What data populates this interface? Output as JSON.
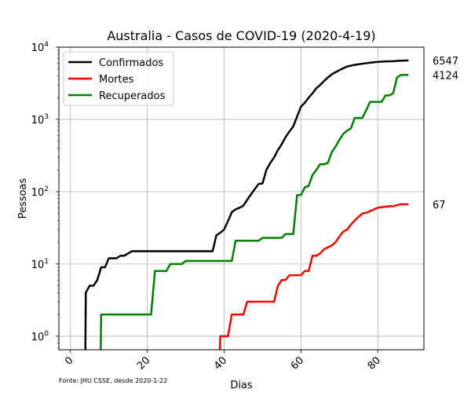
{
  "chart_data": {
    "type": "line",
    "title": "Australia - Casos de COVID-19 (2020-4-19)",
    "xlabel": "Dias",
    "ylabel": "Pessoas",
    "yscale": "log",
    "xlim": [
      -3,
      92
    ],
    "ylim": [
      0.65,
      10000
    ],
    "xticks": [
      0,
      20,
      40,
      60,
      80
    ],
    "yticks": [
      {
        "value": 1,
        "label": "10",
        "exp": "0"
      },
      {
        "value": 10,
        "label": "10",
        "exp": "1"
      },
      {
        "value": 100,
        "label": "10",
        "exp": "2"
      },
      {
        "value": 1000,
        "label": "10",
        "exp": "3"
      },
      {
        "value": 10000,
        "label": "10",
        "exp": "4"
      }
    ],
    "grid": true,
    "legend_position": "top-left",
    "source_note": "Fonte: JHU CSSE, desde 2020-1-22",
    "end_labels": [
      "6547",
      "4124",
      "67"
    ],
    "series": [
      {
        "name": "Confirmados",
        "color": "#000000",
        "x": [
          3.9,
          4,
          5,
          6,
          7,
          8,
          9,
          10,
          11,
          12,
          13,
          14,
          15,
          16,
          20,
          25,
          30,
          35,
          37,
          38,
          39,
          40,
          41,
          42,
          43,
          44,
          45,
          46,
          47,
          48,
          49,
          50,
          51,
          52,
          53,
          54,
          55,
          56,
          57,
          58,
          59,
          60,
          61,
          62,
          63,
          64,
          65,
          66,
          67,
          68,
          69,
          70,
          71,
          72,
          74,
          76,
          78,
          80,
          82,
          84,
          86,
          88
        ],
        "y": [
          0.65,
          4,
          5,
          5,
          6,
          9,
          9,
          12,
          12,
          12,
          13,
          13,
          14,
          15,
          15,
          15,
          15,
          15,
          15,
          25,
          27,
          30,
          39,
          52,
          57,
          60,
          64,
          77,
          92,
          109,
          128,
          130,
          200,
          249,
          298,
          376,
          454,
          570,
          680,
          800,
          1100,
          1500,
          1700,
          2000,
          2300,
          2700,
          3000,
          3400,
          3800,
          4200,
          4500,
          4800,
          5100,
          5400,
          5700,
          5900,
          6100,
          6250,
          6350,
          6400,
          6500,
          6547
        ]
      },
      {
        "name": "Mortes",
        "color": "#ff0000",
        "x": [
          38.9,
          39,
          40,
          41,
          42,
          43,
          44,
          45,
          46,
          47,
          48,
          50,
          52,
          53,
          54,
          55,
          56,
          57,
          58,
          59,
          60,
          61,
          62,
          63,
          64,
          65,
          66,
          67,
          68,
          69,
          70,
          71,
          72,
          73,
          74,
          75,
          76,
          77,
          78,
          79,
          80,
          81,
          82,
          83,
          84,
          85,
          86,
          88
        ],
        "y": [
          0.65,
          1,
          1,
          1,
          2,
          2,
          2,
          2,
          3,
          3,
          3,
          3,
          3,
          3,
          5,
          6,
          6,
          7,
          7,
          7,
          7,
          8,
          8,
          13,
          13,
          14,
          16,
          17,
          18,
          20,
          24,
          28,
          30,
          35,
          40,
          45,
          50,
          51,
          54,
          57,
          60,
          61,
          62,
          63,
          63,
          65,
          67,
          67
        ]
      },
      {
        "name": "Recuperados",
        "color": "#008000",
        "x": [
          7.9,
          8,
          12,
          16,
          20,
          21,
          22,
          23,
          24,
          25,
          26,
          27,
          28,
          29,
          30,
          35,
          40,
          42,
          43,
          44,
          45,
          46,
          47,
          48,
          49,
          50,
          51,
          52,
          53,
          54,
          55,
          56,
          57,
          58,
          59,
          60,
          61,
          62,
          63,
          64,
          65,
          66,
          67,
          68,
          69,
          70,
          71,
          72,
          73,
          74,
          75,
          76,
          77,
          78,
          79,
          80,
          81,
          82,
          83,
          84,
          85,
          86,
          87,
          88
        ],
        "y": [
          0.65,
          2,
          2,
          2,
          2,
          2,
          8,
          8,
          8,
          8,
          10,
          10,
          10,
          10,
          11,
          11,
          11,
          11,
          21,
          21,
          21,
          21,
          21,
          21,
          21,
          23,
          23,
          23,
          23,
          23,
          23,
          26,
          26,
          26,
          90,
          90,
          115,
          120,
          170,
          200,
          240,
          240,
          250,
          350,
          420,
          520,
          630,
          700,
          750,
          1050,
          1050,
          1050,
          1350,
          1750,
          1750,
          1750,
          1750,
          2150,
          2150,
          2300,
          3800,
          4124,
          4124,
          4124
        ]
      }
    ]
  }
}
